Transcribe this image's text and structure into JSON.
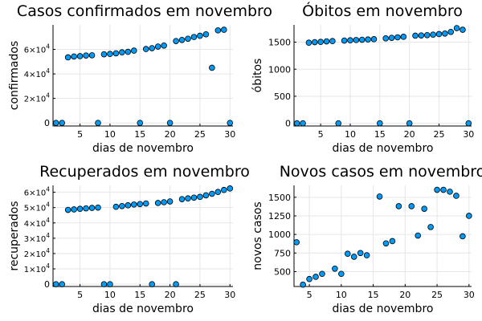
{
  "chart_data": [
    {
      "type": "scatter",
      "title": "Casos confirmados em novembro",
      "xlabel": "dias de novembro",
      "ylabel": "confirmados",
      "xlim": [
        0.5,
        30.5
      ],
      "ylim": [
        -2500,
        80000
      ],
      "x_ticks": [
        5,
        10,
        15,
        20,
        25,
        30
      ],
      "y_ticks": [
        {
          "value": 0,
          "label": "0"
        },
        {
          "value": 20000,
          "label": "2×10",
          "exp": "4"
        },
        {
          "value": 40000,
          "label": "4×10",
          "exp": "4"
        },
        {
          "value": 60000,
          "label": "6×10",
          "exp": "4"
        }
      ],
      "grid": true,
      "legend": "none",
      "x": [
        1,
        2,
        3,
        4,
        5,
        6,
        7,
        8,
        9,
        10,
        11,
        12,
        13,
        14,
        15,
        16,
        17,
        18,
        19,
        20,
        21,
        22,
        23,
        24,
        25,
        26,
        27,
        28,
        29,
        30
      ],
      "y": [
        0,
        0,
        53500,
        54200,
        54500,
        55000,
        55200,
        0,
        56000,
        56300,
        56800,
        57600,
        58000,
        59000,
        0,
        60300,
        61000,
        62300,
        63100,
        0,
        66800,
        67700,
        68700,
        70100,
        71100,
        72300,
        45000,
        75500,
        76000,
        0
      ]
    },
    {
      "type": "scatter",
      "title": "Óbitos em novembro",
      "xlabel": "dias de novembro",
      "ylabel": "óbitos",
      "xlim": [
        0.5,
        30.5
      ],
      "ylim": [
        -50,
        1820
      ],
      "x_ticks": [
        5,
        10,
        15,
        20,
        25,
        30
      ],
      "y_ticks": [
        {
          "value": 0,
          "label": "0"
        },
        {
          "value": 500,
          "label": "500"
        },
        {
          "value": 1000,
          "label": "1000"
        },
        {
          "value": 1500,
          "label": "1500"
        }
      ],
      "grid": true,
      "legend": "none",
      "x": [
        1,
        2,
        3,
        4,
        5,
        6,
        7,
        8,
        9,
        10,
        11,
        12,
        13,
        14,
        15,
        16,
        17,
        18,
        19,
        20,
        21,
        22,
        23,
        24,
        25,
        26,
        27,
        28,
        29,
        30
      ],
      "y": [
        0,
        0,
        1490,
        1500,
        1505,
        1515,
        1520,
        0,
        1530,
        1535,
        1540,
        1545,
        1550,
        1555,
        0,
        1570,
        1580,
        1590,
        1600,
        0,
        1620,
        1625,
        1630,
        1640,
        1650,
        1660,
        1690,
        1760,
        1730,
        0
      ]
    },
    {
      "type": "scatter",
      "title": "Recuperados em novembro",
      "xlabel": "dias de novembro",
      "ylabel": "recuperados",
      "xlim": [
        0.5,
        30.5
      ],
      "ylim": [
        -1500,
        64500
      ],
      "x_ticks": [
        5,
        10,
        15,
        20,
        25,
        30
      ],
      "y_ticks": [
        {
          "value": 0,
          "label": "0"
        },
        {
          "value": 10000,
          "label": "1×10",
          "exp": "4"
        },
        {
          "value": 20000,
          "label": "2×10",
          "exp": "4"
        },
        {
          "value": 30000,
          "label": "3×10",
          "exp": "4"
        },
        {
          "value": 40000,
          "label": "4×10",
          "exp": "4"
        },
        {
          "value": 50000,
          "label": "5×10",
          "exp": "4"
        },
        {
          "value": 60000,
          "label": "6×10",
          "exp": "4"
        }
      ],
      "grid": true,
      "legend": "none",
      "x": [
        1,
        2,
        3,
        4,
        5,
        6,
        7,
        8,
        9,
        10,
        11,
        12,
        13,
        14,
        15,
        16,
        17,
        18,
        19,
        20,
        21,
        22,
        23,
        24,
        25,
        26,
        27,
        28,
        29,
        30
      ],
      "y": [
        0,
        0,
        48500,
        48800,
        49200,
        49500,
        49800,
        50000,
        0,
        0,
        50500,
        51000,
        51500,
        52000,
        52300,
        52700,
        0,
        53000,
        53500,
        54000,
        0,
        55500,
        56000,
        56500,
        57000,
        58000,
        59000,
        60200,
        61500,
        62500
      ]
    },
    {
      "type": "scatter",
      "title": "Novos casos em novembro",
      "xlabel": "dias de novembro",
      "ylabel": "novos casos",
      "xlim": [
        2.6,
        30.4
      ],
      "ylim": [
        300,
        1660
      ],
      "x_ticks": [
        5,
        10,
        15,
        20,
        25,
        30
      ],
      "y_ticks": [
        {
          "value": 500,
          "label": "500"
        },
        {
          "value": 750,
          "label": "750"
        },
        {
          "value": 1000,
          "label": "1000"
        },
        {
          "value": 1250,
          "label": "1250"
        },
        {
          "value": 1500,
          "label": "1500"
        }
      ],
      "grid": true,
      "legend": "none",
      "x": [
        3,
        4,
        5,
        6,
        7,
        9,
        10,
        11,
        12,
        13,
        14,
        16,
        17,
        18,
        19,
        21,
        22,
        23,
        24,
        25,
        26,
        27,
        28,
        29,
        30
      ],
      "y": [
        895,
        325,
        400,
        430,
        470,
        540,
        470,
        740,
        700,
        750,
        720,
        1510,
        880,
        910,
        1380,
        1380,
        985,
        1345,
        1100,
        1600,
        1600,
        1575,
        1520,
        975,
        1250
      ]
    }
  ]
}
